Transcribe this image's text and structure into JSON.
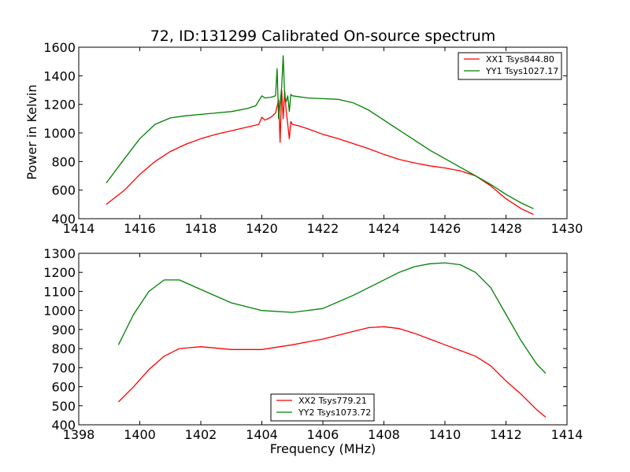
{
  "colors": {
    "red": "#ff0000",
    "green": "#008000",
    "axis": "#000000"
  },
  "chart_data": [
    {
      "type": "line",
      "title": "72, ID:131299 Calibrated On-source spectrum",
      "xlabel": "",
      "ylabel": "Power in Kelvin",
      "xlim": [
        1414,
        1430
      ],
      "ylim": [
        400,
        1600
      ],
      "xticks": [
        1414,
        1416,
        1418,
        1420,
        1422,
        1424,
        1426,
        1428,
        1430
      ],
      "yticks": [
        400,
        600,
        800,
        1000,
        1200,
        1400,
        1600
      ],
      "legend": {
        "position": "top-right"
      },
      "series": [
        {
          "name": "XX1 Tsys844.80",
          "color": "#ff0000",
          "x": [
            1414.9,
            1415.5,
            1416.0,
            1416.5,
            1417.0,
            1417.5,
            1418.0,
            1418.5,
            1419.0,
            1419.5,
            1419.9,
            1420.0,
            1420.1,
            1420.3,
            1420.45,
            1420.55,
            1420.6,
            1420.65,
            1420.7,
            1420.75,
            1420.8,
            1420.85,
            1420.9,
            1420.95,
            1421.0,
            1421.2,
            1421.5,
            1422.0,
            1422.5,
            1423.0,
            1423.5,
            1424.0,
            1424.5,
            1425.0,
            1425.5,
            1426.0,
            1426.5,
            1427.0,
            1427.5,
            1428.0,
            1428.5,
            1428.9
          ],
          "y": [
            500,
            600,
            710,
            800,
            870,
            920,
            960,
            990,
            1015,
            1040,
            1060,
            1110,
            1090,
            1110,
            1140,
            1230,
            935,
            1300,
            1100,
            1290,
            1150,
            1060,
            960,
            1080,
            1060,
            1050,
            1030,
            990,
            960,
            925,
            890,
            850,
            815,
            790,
            770,
            755,
            735,
            700,
            630,
            540,
            470,
            430
          ]
        },
        {
          "name": "YY1 Tsys1027.17",
          "color": "#008000",
          "x": [
            1414.9,
            1415.5,
            1416.0,
            1416.5,
            1417.0,
            1417.5,
            1418.0,
            1418.5,
            1419.0,
            1419.5,
            1419.8,
            1420.0,
            1420.1,
            1420.3,
            1420.45,
            1420.5,
            1420.55,
            1420.6,
            1420.65,
            1420.7,
            1420.75,
            1420.8,
            1420.85,
            1420.9,
            1420.95,
            1421.0,
            1421.5,
            1422.0,
            1422.5,
            1423.0,
            1423.5,
            1424.0,
            1424.5,
            1425.0,
            1425.5,
            1426.0,
            1426.5,
            1427.0,
            1427.5,
            1428.0,
            1428.5,
            1428.9
          ],
          "y": [
            650,
            820,
            960,
            1060,
            1105,
            1120,
            1130,
            1140,
            1150,
            1170,
            1190,
            1260,
            1245,
            1250,
            1260,
            1450,
            1100,
            1210,
            1320,
            1540,
            1250,
            1220,
            1260,
            1150,
            1270,
            1260,
            1245,
            1240,
            1235,
            1210,
            1160,
            1090,
            1020,
            950,
            880,
            820,
            760,
            700,
            640,
            570,
            510,
            470
          ]
        }
      ]
    },
    {
      "type": "line",
      "title": "",
      "xlabel": "Frequency (MHz)",
      "ylabel": "",
      "xlim": [
        1398,
        1414
      ],
      "ylim": [
        400,
        1300
      ],
      "xticks": [
        1398,
        1400,
        1402,
        1404,
        1406,
        1408,
        1410,
        1412,
        1414
      ],
      "yticks": [
        400,
        500,
        600,
        700,
        800,
        900,
        1000,
        1100,
        1200,
        1300
      ],
      "legend": {
        "position": "bottom-center"
      },
      "series": [
        {
          "name": "XX2 Tsys779.21",
          "color": "#ff0000",
          "x": [
            1399.3,
            1399.8,
            1400.3,
            1400.8,
            1401.3,
            1402.0,
            1403.0,
            1404.0,
            1405.0,
            1406.0,
            1407.0,
            1407.5,
            1408.0,
            1408.5,
            1409.0,
            1409.5,
            1410.0,
            1410.5,
            1411.0,
            1411.5,
            1412.0,
            1412.5,
            1413.0,
            1413.3
          ],
          "y": [
            520,
            600,
            690,
            760,
            800,
            810,
            795,
            795,
            820,
            850,
            890,
            910,
            915,
            905,
            880,
            850,
            820,
            790,
            760,
            710,
            630,
            560,
            480,
            440
          ]
        },
        {
          "name": "YY2 Tsys1073.72",
          "color": "#008000",
          "x": [
            1399.3,
            1399.8,
            1400.3,
            1400.8,
            1401.3,
            1402.0,
            1403.0,
            1404.0,
            1405.0,
            1406.0,
            1407.0,
            1408.0,
            1408.5,
            1409.0,
            1409.5,
            1410.0,
            1410.5,
            1411.0,
            1411.5,
            1412.0,
            1412.5,
            1413.0,
            1413.3
          ],
          "y": [
            820,
            980,
            1100,
            1160,
            1160,
            1110,
            1040,
            1000,
            990,
            1010,
            1080,
            1160,
            1200,
            1230,
            1245,
            1250,
            1240,
            1200,
            1120,
            980,
            840,
            720,
            670
          ]
        }
      ]
    }
  ]
}
